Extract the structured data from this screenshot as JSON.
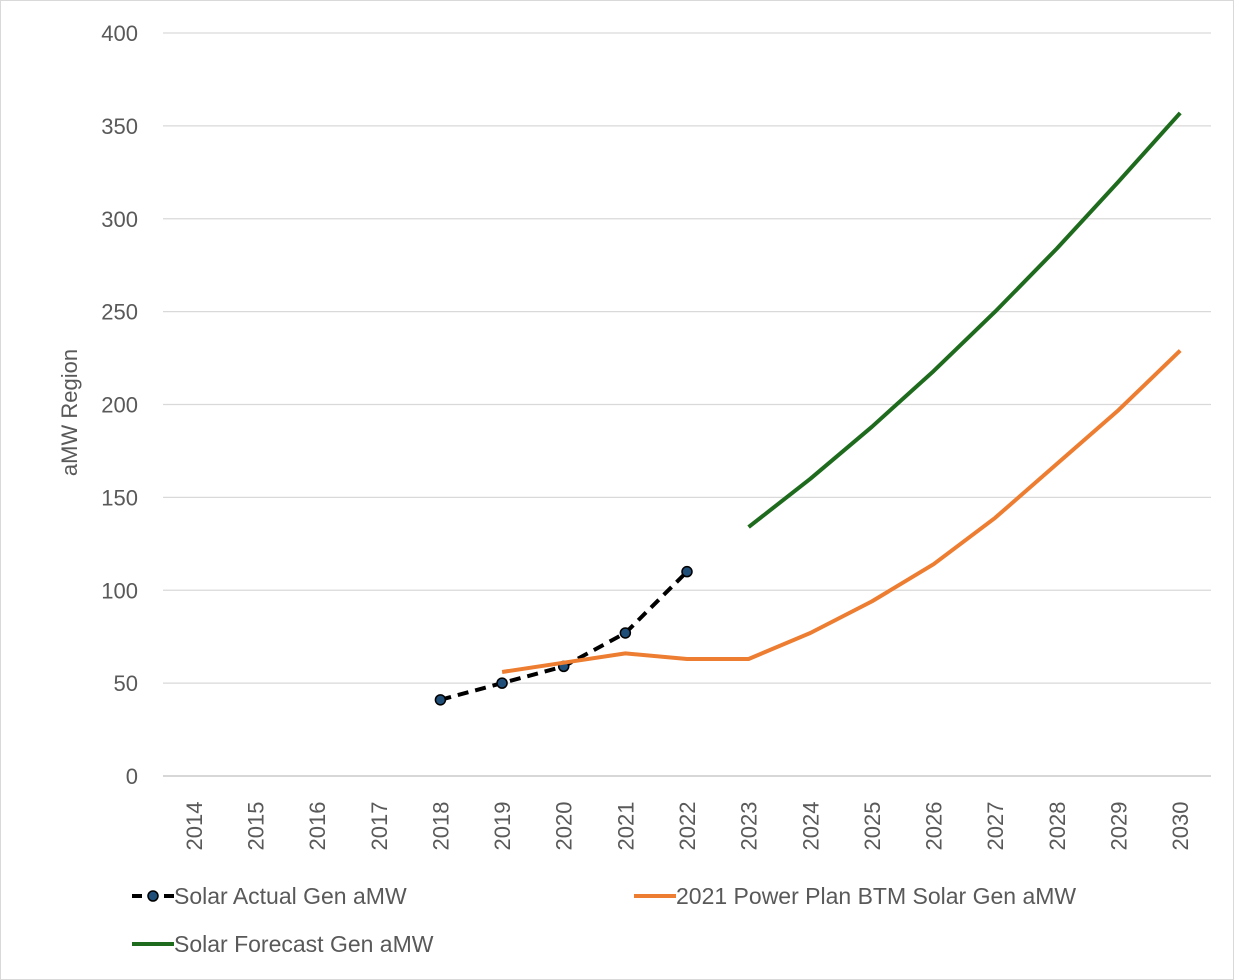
{
  "chart_data": {
    "type": "line",
    "title": "",
    "xlabel": "",
    "ylabel": "aMW Region",
    "categories": [
      "2014",
      "2015",
      "2016",
      "2017",
      "2018",
      "2019",
      "2020",
      "2021",
      "2022",
      "2023",
      "2024",
      "2025",
      "2026",
      "2027",
      "2028",
      "2029",
      "2030"
    ],
    "ylim": [
      0,
      400
    ],
    "yticks": [
      0,
      50,
      100,
      150,
      200,
      250,
      300,
      350,
      400
    ],
    "grid": true,
    "legend_position": "bottom",
    "series": [
      {
        "name": "Solar Actual Gen aMW",
        "color": "#000000",
        "style": "dashed-with-markers",
        "values": [
          null,
          null,
          null,
          null,
          41,
          50,
          59,
          77,
          110,
          null,
          null,
          null,
          null,
          null,
          null,
          null,
          null
        ]
      },
      {
        "name": "2021 Power Plan BTM Solar Gen aMW",
        "color": "#ed7d31",
        "style": "solid",
        "values": [
          null,
          null,
          null,
          null,
          null,
          56,
          61,
          66,
          63,
          63,
          77,
          94,
          114,
          139,
          168,
          197,
          229
        ]
      },
      {
        "name": "Solar Forecast Gen aMW",
        "color": "#1e6b1e",
        "style": "solid",
        "values": [
          null,
          null,
          null,
          null,
          null,
          null,
          null,
          null,
          null,
          134,
          160,
          188,
          218,
          250,
          284,
          320,
          357
        ]
      }
    ]
  }
}
